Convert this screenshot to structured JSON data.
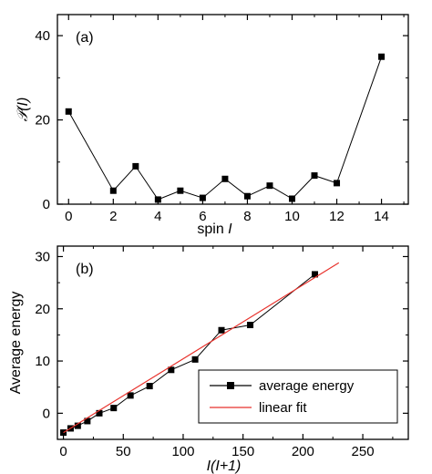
{
  "chart_data": [
    {
      "panel_label": "(a)",
      "type": "line",
      "ylabel": "𝒫(I)",
      "xlabel_prefix": "spin ",
      "xlabel_var": "I",
      "xlim": [
        -0.5,
        15.2
      ],
      "ylim": [
        0,
        45
      ],
      "xticks": [
        0,
        2,
        4,
        6,
        8,
        10,
        12,
        14
      ],
      "yticks": [
        0,
        20,
        40
      ],
      "marker": "square",
      "color": "#000000",
      "series": [
        {
          "x": [
            0,
            2,
            3,
            4,
            5,
            6,
            7,
            8,
            9,
            10,
            11,
            12,
            14
          ],
          "y": [
            22,
            3.2,
            9,
            1.1,
            3.2,
            1.5,
            6,
            1.9,
            4.4,
            1.3,
            6.8,
            5,
            35
          ]
        }
      ]
    },
    {
      "panel_label": "(b)",
      "type": "line",
      "ylabel": "Average energy",
      "xlabel": "I(I+1)",
      "xlim": [
        -5,
        288
      ],
      "ylim": [
        -5,
        32
      ],
      "xticks": [
        0,
        50,
        100,
        150,
        200,
        250
      ],
      "yticks": [
        0,
        10,
        20,
        30
      ],
      "legend_position": "bottom-right",
      "series": [
        {
          "name": "average energy",
          "color": "#000000",
          "marker": "square",
          "x": [
            0,
            6,
            12,
            20,
            30,
            42,
            56,
            72,
            90,
            110,
            132,
            156,
            210
          ],
          "y": [
            -3.7,
            -2.9,
            -2.4,
            -1.5,
            0,
            1,
            3.4,
            5.2,
            8.3,
            10.3,
            15.9,
            16.9,
            26.6
          ]
        },
        {
          "name": "linear fit",
          "color": "#e8322c",
          "marker": "none",
          "x": [
            0,
            230
          ],
          "y": [
            -3.7,
            28.8
          ]
        }
      ]
    }
  ]
}
